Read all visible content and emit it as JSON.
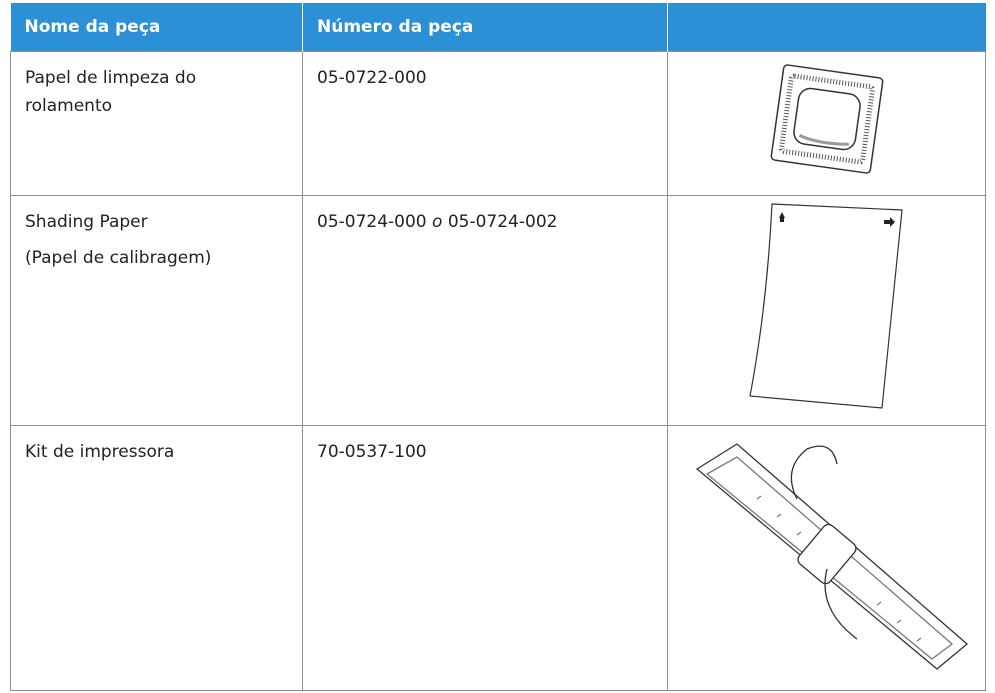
{
  "table": {
    "header": [
      "Nome da peça",
      "Número da peça"
    ],
    "rows": [
      {
        "name": [
          "Papel de limpeza do rolamento"
        ],
        "number": [
          "05-0722-000"
        ]
      },
      {
        "name": [
          "Shading Paper",
          "(Papel de calibragem)"
        ],
        "number": [
          "05-0724-000",
          "o",
          "05-0724-002"
        ]
      },
      {
        "name": [
          "Kit de impressora"
        ],
        "number": [
          "70-0537-100"
        ]
      }
    ]
  }
}
